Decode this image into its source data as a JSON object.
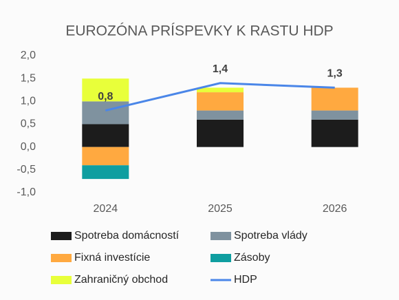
{
  "chart_data": {
    "type": "bar",
    "title": "EUROZÓNA PRÍSPEVKY K RASTU HDP",
    "categories": [
      "2024",
      "2025",
      "2026"
    ],
    "ylim": [
      -1.0,
      2.0
    ],
    "yticks": [
      {
        "value": -1.0,
        "label": "-1,0"
      },
      {
        "value": -0.5,
        "label": "-0,5"
      },
      {
        "value": 0,
        "label": "0,0"
      },
      {
        "value": 0.5,
        "label": "0,5"
      },
      {
        "value": 1.0,
        "label": "1,0"
      },
      {
        "value": 1.5,
        "label": "1,5"
      },
      {
        "value": 2.0,
        "label": "2,0"
      }
    ],
    "series": [
      {
        "name": "Spotreba domácností",
        "color": "#1c1c1c",
        "values": [
          0.5,
          0.6,
          0.6
        ]
      },
      {
        "name": "Spotreba vlády",
        "color": "#7f929f",
        "values": [
          0.5,
          0.2,
          0.2
        ]
      },
      {
        "name": "Fixná investície",
        "color": "#ffa940",
        "values": [
          -0.4,
          0.4,
          0.5
        ]
      },
      {
        "name": "Zásoby",
        "color": "#0f9ea0",
        "values": [
          -0.3,
          0,
          0
        ]
      },
      {
        "name": "Zahraničný obchod",
        "color": "#e8ff3a",
        "values": [
          0.5,
          0.1,
          0
        ]
      },
      {
        "name": "HDP",
        "color": "#4a86e8",
        "type": "line",
        "values": [
          0.8,
          1.4,
          1.3
        ],
        "value_labels": [
          "0,8",
          "1,4",
          "1,3"
        ]
      }
    ]
  }
}
